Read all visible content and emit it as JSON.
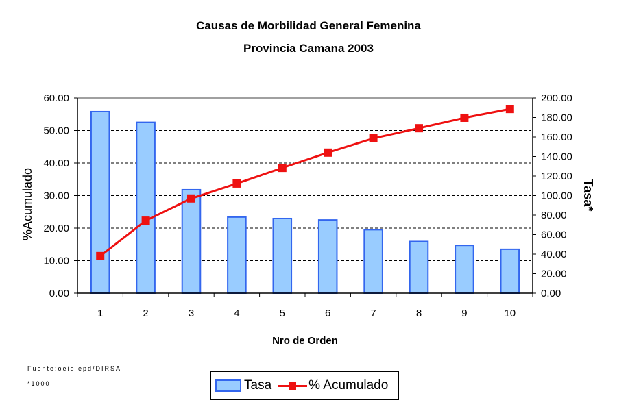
{
  "chart_data": {
    "type": "bar+line",
    "title": "Causas de Morbilidad General Femenina",
    "subtitle": "Provincia Camana 2003",
    "xlabel": "Nro de Orden",
    "ylabel_left": "%Acumulado",
    "ylabel_right": "Tasa*",
    "categories": [
      "1",
      "2",
      "3",
      "4",
      "5",
      "6",
      "7",
      "8",
      "9",
      "10"
    ],
    "ylim_left": [
      0,
      60
    ],
    "ylim_right": [
      0,
      200
    ],
    "left_ticks": [
      "0.00",
      "10.00",
      "20.00",
      "30.00",
      "40.00",
      "50.00",
      "60.00"
    ],
    "right_ticks": [
      "0.00",
      "20.00",
      "40.00",
      "60.00",
      "80.00",
      "100.00",
      "120.00",
      "140.00",
      "160.00",
      "180.00",
      "200.00"
    ],
    "grid": "dashed horizontal",
    "legend_position": "bottom",
    "series": [
      {
        "name": "Tasa",
        "type": "bar",
        "axis": "right",
        "color": "#99ccff",
        "values": [
          186,
          175,
          106,
          78,
          76.5,
          75,
          65,
          53,
          49,
          45
        ]
      },
      {
        "name": "% Acumulado",
        "type": "line",
        "axis": "left",
        "color": "#ee1111",
        "values": [
          11.4,
          22.3,
          29.1,
          33.7,
          38.5,
          43.2,
          47.6,
          50.7,
          53.9,
          56.6
        ]
      }
    ]
  },
  "notes": {
    "source": "Fuente:oeio epd/DIRSA",
    "footnote": "*1000"
  }
}
